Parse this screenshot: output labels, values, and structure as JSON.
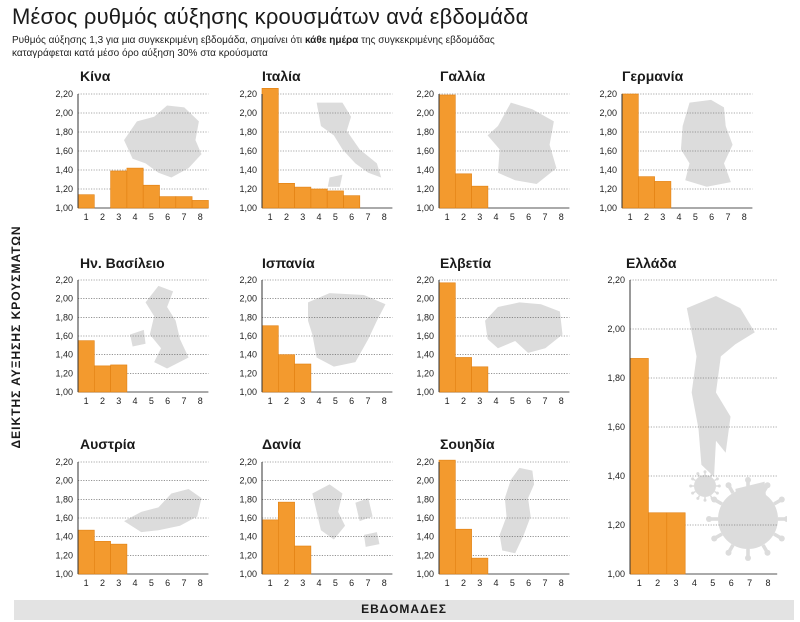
{
  "title": "Μέσος ρυθμός αύξησης κρουσμάτων ανά εβδομάδα",
  "subtitle_part1": "Ρυθμός αύξησης 1,3 για μια συγκεκριμένη εβδομάδα, σημαίνει ότι ",
  "subtitle_bold": "κάθε ημέρα",
  "subtitle_part2": " της συγκεκριμένης εβδομάδας καταγράφεται κατά μέσο όρο αύξηση 30% στα κρούσματα",
  "ylabel": "ΔΕΙΚΤΗΣ ΑΥΞΗΣΗΣ ΚΡΟΥΣΜΑΤΩΝ",
  "xlabel": "ΕΒΔΟΜΑΔΕΣ",
  "colors": {
    "bar": "#f39a2e",
    "bar_edge": "#e07f10",
    "map": "#dcdcdc",
    "grid": "#555555"
  },
  "chart_data": [
    {
      "type": "bar",
      "title": "Κίνα",
      "map_icon": "china-map",
      "categories": [
        "1",
        "2",
        "3",
        "4",
        "5",
        "6",
        "7",
        "8"
      ],
      "values": [
        1.14,
        null,
        1.39,
        1.42,
        1.24,
        1.12,
        1.12,
        1.08
      ],
      "ylim": [
        1.0,
        2.2
      ],
      "yticks": [
        "1,00",
        "1,20",
        "1,40",
        "1,60",
        "1,80",
        "2,00",
        "2,20"
      ]
    },
    {
      "type": "bar",
      "title": "Ιταλία",
      "map_icon": "italy-map",
      "categories": [
        "1",
        "2",
        "3",
        "4",
        "5",
        "6",
        "7",
        "8"
      ],
      "values": [
        2.26,
        1.26,
        1.22,
        1.2,
        1.18,
        1.13,
        null,
        null
      ],
      "ylim": [
        1.0,
        2.2
      ],
      "yticks": [
        "1,00",
        "1,20",
        "1,40",
        "1,60",
        "1,80",
        "2,00",
        "2,20"
      ]
    },
    {
      "type": "bar",
      "title": "Γαλλία",
      "map_icon": "france-map",
      "categories": [
        "1",
        "2",
        "3",
        "4",
        "5",
        "6",
        "7",
        "8"
      ],
      "values": [
        2.19,
        1.36,
        1.23,
        null,
        null,
        null,
        null,
        null
      ],
      "ylim": [
        1.0,
        2.2
      ],
      "yticks": [
        "1,00",
        "1,20",
        "1,40",
        "1,60",
        "1,80",
        "2,00",
        "2,20"
      ]
    },
    {
      "type": "bar",
      "title": "Γερμανία",
      "map_icon": "germany-map",
      "categories": [
        "1",
        "2",
        "3",
        "4",
        "5",
        "6",
        "7",
        "8"
      ],
      "values": [
        2.2,
        1.33,
        1.28,
        null,
        null,
        null,
        null,
        null
      ],
      "ylim": [
        1.0,
        2.2
      ],
      "yticks": [
        "1,00",
        "1,20",
        "1,40",
        "1,60",
        "1,80",
        "2,00",
        "2,20"
      ]
    },
    {
      "type": "bar",
      "title": "Ην. Βασίλειο",
      "map_icon": "uk-map",
      "categories": [
        "1",
        "2",
        "3",
        "4",
        "5",
        "6",
        "7",
        "8"
      ],
      "values": [
        1.55,
        1.28,
        1.29,
        null,
        null,
        null,
        null,
        null
      ],
      "ylim": [
        1.0,
        2.2
      ],
      "yticks": [
        "1,00",
        "1,20",
        "1,40",
        "1,60",
        "1,80",
        "2,00",
        "2,20"
      ]
    },
    {
      "type": "bar",
      "title": "Ισπανία",
      "map_icon": "spain-map",
      "categories": [
        "1",
        "2",
        "3",
        "4",
        "5",
        "6",
        "7",
        "8"
      ],
      "values": [
        1.71,
        1.4,
        1.3,
        null,
        null,
        null,
        null,
        null
      ],
      "ylim": [
        1.0,
        2.2
      ],
      "yticks": [
        "1,00",
        "1,20",
        "1,40",
        "1,60",
        "1,80",
        "2,00",
        "2,20"
      ]
    },
    {
      "type": "bar",
      "title": "Ελβετία",
      "map_icon": "switzerland-map",
      "categories": [
        "1",
        "2",
        "3",
        "4",
        "5",
        "6",
        "7",
        "8"
      ],
      "values": [
        2.17,
        1.37,
        1.27,
        null,
        null,
        null,
        null,
        null
      ],
      "ylim": [
        1.0,
        2.2
      ],
      "yticks": [
        "1,00",
        "1,20",
        "1,40",
        "1,60",
        "1,80",
        "2,00",
        "2,20"
      ]
    },
    {
      "type": "bar",
      "title": "Αυστρία",
      "map_icon": "austria-map",
      "categories": [
        "1",
        "2",
        "3",
        "4",
        "5",
        "6",
        "7",
        "8"
      ],
      "values": [
        1.47,
        1.35,
        1.32,
        null,
        null,
        null,
        null,
        null
      ],
      "ylim": [
        1.0,
        2.2
      ],
      "yticks": [
        "1,00",
        "1,20",
        "1,40",
        "1,60",
        "1,80",
        "2,00",
        "2,20"
      ]
    },
    {
      "type": "bar",
      "title": "Δανία",
      "map_icon": "denmark-map",
      "categories": [
        "1",
        "2",
        "3",
        "4",
        "5",
        "6",
        "7",
        "8"
      ],
      "values": [
        1.58,
        1.77,
        1.3,
        null,
        null,
        null,
        null,
        null
      ],
      "ylim": [
        1.0,
        2.2
      ],
      "yticks": [
        "1,00",
        "1,20",
        "1,40",
        "1,60",
        "1,80",
        "2,00",
        "2,20"
      ]
    },
    {
      "type": "bar",
      "title": "Σουηδία",
      "map_icon": "sweden-map",
      "categories": [
        "1",
        "2",
        "3",
        "4",
        "5",
        "6",
        "7",
        "8"
      ],
      "values": [
        2.22,
        1.48,
        1.17,
        null,
        null,
        null,
        null,
        null
      ],
      "ylim": [
        1.0,
        2.2
      ],
      "yticks": [
        "1,00",
        "1,20",
        "1,40",
        "1,60",
        "1,80",
        "2,00",
        "2,20"
      ]
    },
    {
      "type": "bar",
      "title": "Ελλάδα",
      "map_icon": "greece-map",
      "categories": [
        "1",
        "2",
        "3",
        "4",
        "5",
        "6",
        "7",
        "8"
      ],
      "values": [
        1.88,
        1.25,
        1.25,
        null,
        null,
        null,
        null,
        null
      ],
      "ylim": [
        1.0,
        2.2
      ],
      "yticks": [
        "1,00",
        "1,20",
        "1,40",
        "1,60",
        "1,80",
        "2,00",
        "2,20"
      ]
    }
  ]
}
